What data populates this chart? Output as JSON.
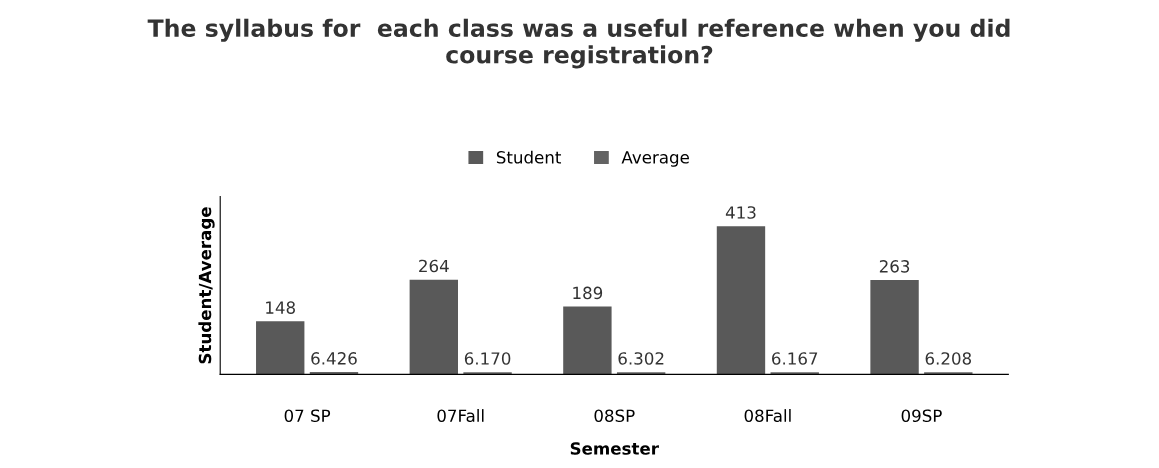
{
  "chart_data": {
    "type": "bar",
    "title": "The syllabus for  each class was a useful reference when you did\ncourse registration?",
    "xlabel": "Semester",
    "ylabel": "Student/Average",
    "categories": [
      "07 SP",
      "07Fall",
      "08SP",
      "08Fall",
      "09SP"
    ],
    "series": [
      {
        "name": "Student",
        "color": "#595959",
        "values": [
          148,
          264,
          189,
          413,
          263
        ],
        "value_labels": [
          "148",
          "264",
          "189",
          "413",
          "263"
        ]
      },
      {
        "name": "Average",
        "color": "#636363",
        "values": [
          6.426,
          6.17,
          6.302,
          6.167,
          6.208
        ],
        "value_labels": [
          "6.426",
          "6.170",
          "6.302",
          "6.167",
          "6.208"
        ]
      }
    ],
    "legend": "top",
    "grid": false,
    "tick_labels": "x"
  }
}
